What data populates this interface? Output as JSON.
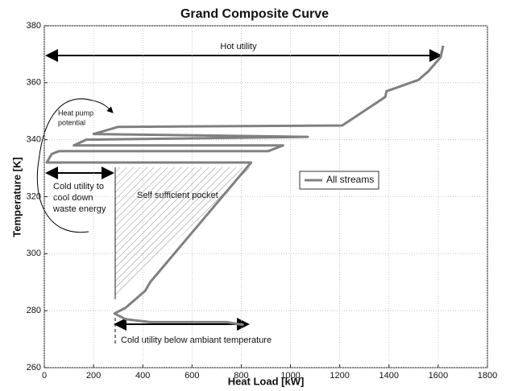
{
  "chart_data": {
    "type": "line",
    "title": "Grand Composite Curve",
    "xlabel": "Heat Load [kW]",
    "ylabel": "Temperature [K]",
    "xlim": [
      0,
      1800
    ],
    "xticks": [
      0,
      200,
      400,
      600,
      800,
      1000,
      1200,
      1400,
      1600,
      1800
    ],
    "ylim": [
      260,
      380
    ],
    "yticks": [
      260,
      280,
      300,
      320,
      340,
      360,
      380
    ],
    "grid": true,
    "legend": "right",
    "series": [
      {
        "name": "All streams",
        "color": "#808080",
        "x": [
          1620,
          1610,
          1560,
          1520,
          1390,
          1385,
          1210,
          300,
          200,
          1070,
          170,
          120,
          970,
          910,
          60,
          30,
          10,
          840,
          430,
          410,
          330,
          285,
          330,
          430,
          740,
          810
        ],
        "values": [
          373,
          369,
          364,
          361,
          357,
          355,
          345,
          344.5,
          342,
          341,
          340,
          338,
          338,
          336,
          336,
          335,
          332,
          332,
          290,
          287,
          281,
          279,
          277,
          276,
          276,
          275
        ]
      }
    ],
    "annotations": {
      "hot_utility": "Hot utility",
      "heat_pump": [
        "Heat pump",
        "potential"
      ],
      "cold_utility": [
        "Cold utility to",
        "cool down",
        "waste energy"
      ],
      "pocket": "Self sufficient pocket",
      "cold_below": "Cold utility below ambiant temperature"
    }
  }
}
